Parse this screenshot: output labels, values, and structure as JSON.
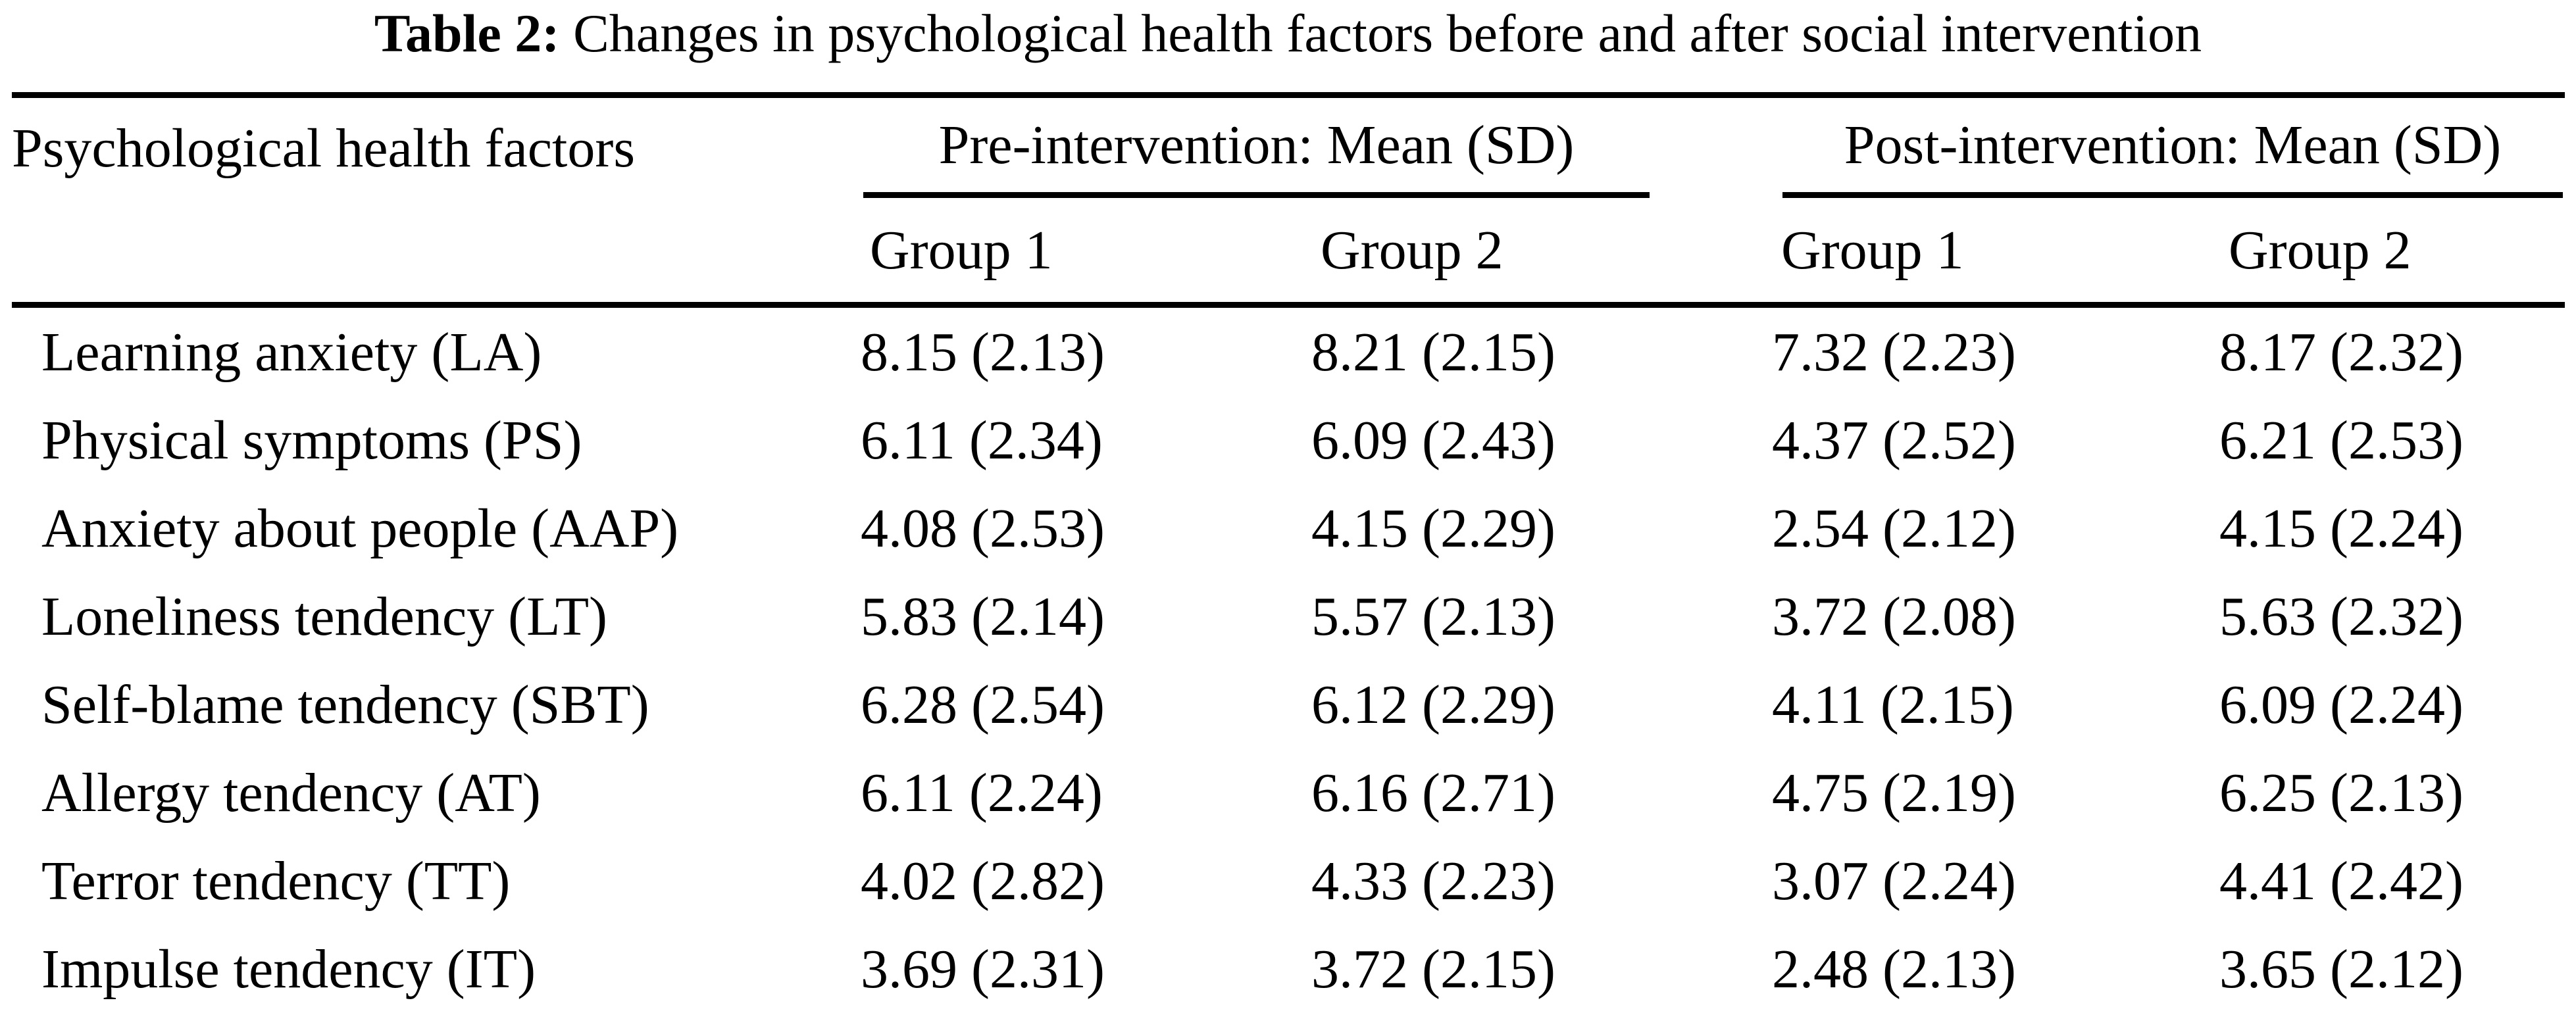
{
  "title": {
    "label": "Table 2:",
    "text": " Changes in psychological health factors before and after social intervention"
  },
  "table": {
    "factor_header": "Psychological health factors",
    "pre_header": "Pre-intervention: Mean (SD)",
    "post_header": "Post-intervention: Mean (SD)",
    "sub_headers": [
      "Group 1",
      "Group 2",
      "Group 1",
      "Group 2"
    ],
    "rows": [
      {
        "factor": "Learning anxiety (LA)",
        "values": [
          "8.15 (2.13)",
          "8.21 (2.15)",
          "7.32 (2.23)",
          "8.17 (2.32)"
        ]
      },
      {
        "factor": "Physical symptoms (PS)",
        "values": [
          "6.11 (2.34)",
          "6.09 (2.43)",
          "4.37 (2.52)",
          "6.21 (2.53)"
        ]
      },
      {
        "factor": "Anxiety about people (AAP)",
        "values": [
          "4.08 (2.53)",
          "4.15 (2.29)",
          "2.54 (2.12)",
          "4.15 (2.24)"
        ]
      },
      {
        "factor": "Loneliness tendency (LT)",
        "values": [
          "5.83 (2.14)",
          "5.57 (2.13)",
          "3.72 (2.08)",
          "5.63 (2.32)"
        ]
      },
      {
        "factor": "Self-blame tendency (SBT)",
        "values": [
          "6.28 (2.54)",
          "6.12 (2.29)",
          "4.11 (2.15)",
          "6.09 (2.24)"
        ]
      },
      {
        "factor": "Allergy tendency (AT)",
        "values": [
          "6.11 (2.24)",
          "6.16 (2.71)",
          "4.75 (2.19)",
          "6.25 (2.13)"
        ]
      },
      {
        "factor": "Terror tendency (TT)",
        "values": [
          "4.02 (2.82)",
          "4.33 (2.23)",
          "3.07 (2.24)",
          "4.41 (2.42)"
        ]
      },
      {
        "factor": "Impulse tendency (IT)",
        "values": [
          "3.69 (2.31)",
          "3.72 (2.15)",
          "2.48 (2.13)",
          "3.65 (2.12)"
        ]
      }
    ]
  },
  "chart_data": {
    "type": "table",
    "title": "Table 2: Changes in psychological health factors before and after social intervention",
    "columns": [
      "Psychological health factors",
      "Pre-intervention Group 1 Mean (SD)",
      "Pre-intervention Group 2 Mean (SD)",
      "Post-intervention Group 1 Mean (SD)",
      "Post-intervention Group 2 Mean (SD)"
    ],
    "series": [
      {
        "name": "Learning anxiety (LA)",
        "pre_g1_mean": 8.15,
        "pre_g1_sd": 2.13,
        "pre_g2_mean": 8.21,
        "pre_g2_sd": 2.15,
        "post_g1_mean": 7.32,
        "post_g1_sd": 2.23,
        "post_g2_mean": 8.17,
        "post_g2_sd": 2.32
      },
      {
        "name": "Physical symptoms (PS)",
        "pre_g1_mean": 6.11,
        "pre_g1_sd": 2.34,
        "pre_g2_mean": 6.09,
        "pre_g2_sd": 2.43,
        "post_g1_mean": 4.37,
        "post_g1_sd": 2.52,
        "post_g2_mean": 6.21,
        "post_g2_sd": 2.53
      },
      {
        "name": "Anxiety about people (AAP)",
        "pre_g1_mean": 4.08,
        "pre_g1_sd": 2.53,
        "pre_g2_mean": 4.15,
        "pre_g2_sd": 2.29,
        "post_g1_mean": 2.54,
        "post_g1_sd": 2.12,
        "post_g2_mean": 4.15,
        "post_g2_sd": 2.24
      },
      {
        "name": "Loneliness tendency (LT)",
        "pre_g1_mean": 5.83,
        "pre_g1_sd": 2.14,
        "pre_g2_mean": 5.57,
        "pre_g2_sd": 2.13,
        "post_g1_mean": 3.72,
        "post_g1_sd": 2.08,
        "post_g2_mean": 5.63,
        "post_g2_sd": 2.32
      },
      {
        "name": "Self-blame tendency (SBT)",
        "pre_g1_mean": 6.28,
        "pre_g1_sd": 2.54,
        "pre_g2_mean": 6.12,
        "pre_g2_sd": 2.29,
        "post_g1_mean": 4.11,
        "post_g1_sd": 2.15,
        "post_g2_mean": 6.09,
        "post_g2_sd": 2.24
      },
      {
        "name": "Allergy tendency (AT)",
        "pre_g1_mean": 6.11,
        "pre_g1_sd": 2.24,
        "pre_g2_mean": 6.16,
        "pre_g2_sd": 2.71,
        "post_g1_mean": 4.75,
        "post_g1_sd": 2.19,
        "post_g2_mean": 6.25,
        "post_g2_sd": 2.13
      },
      {
        "name": "Terror tendency (TT)",
        "pre_g1_mean": 4.02,
        "pre_g1_sd": 2.82,
        "pre_g2_mean": 4.33,
        "pre_g2_sd": 2.23,
        "post_g1_mean": 3.07,
        "post_g1_sd": 2.24,
        "post_g2_mean": 4.41,
        "post_g2_sd": 2.42
      },
      {
        "name": "Impulse tendency (IT)",
        "pre_g1_mean": 3.69,
        "pre_g1_sd": 2.31,
        "pre_g2_mean": 3.72,
        "pre_g2_sd": 2.15,
        "post_g1_mean": 2.48,
        "post_g1_sd": 2.13,
        "post_g2_mean": 3.65,
        "post_g2_sd": 2.12
      }
    ]
  }
}
